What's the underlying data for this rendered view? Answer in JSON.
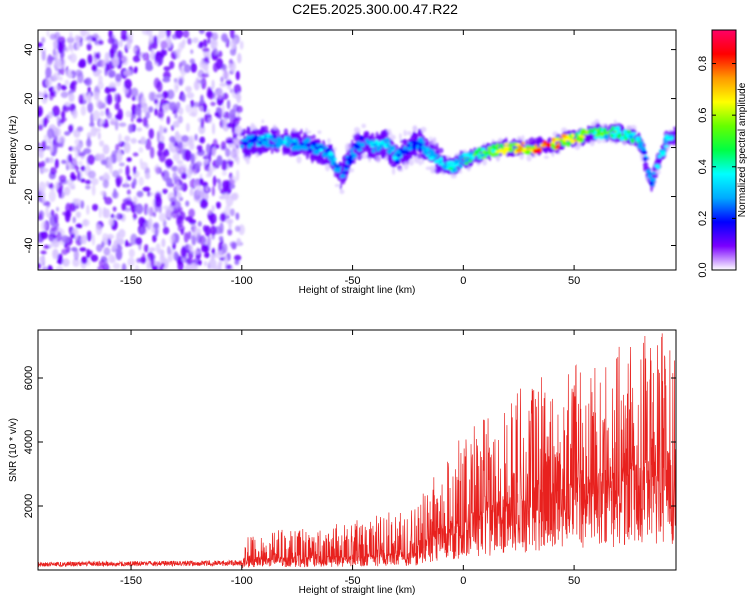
{
  "title": "C2E5.2025.300.00.47.R22",
  "colors": {
    "snr_line": "#e8211e",
    "spectro_core": "#6a00ff",
    "spectro_faint": "#d9c6ff",
    "background": "#ffffff",
    "colormap": [
      "#ffffff",
      "#7a00ff",
      "#0000ff",
      "#00aaff",
      "#00ffff",
      "#00ff44",
      "#66ff00",
      "#ffff00",
      "#ff9900",
      "#ff0000",
      "#ff0066"
    ]
  },
  "chart_data": [
    {
      "type": "heatmap",
      "name": "spectrogram",
      "xlabel": "Height of straight line (km)",
      "ylabel": "Frequency (Hz)",
      "xlim": [
        -192,
        96
      ],
      "ylim": [
        -50,
        48
      ],
      "xticks": [
        -150,
        -100,
        -50,
        0,
        50
      ],
      "yticks": [
        -40,
        -20,
        0,
        20,
        40
      ],
      "noise_region_x": [
        -192,
        -100
      ],
      "ridge": {
        "x": [
          -100,
          -90,
          -80,
          -70,
          -60,
          -55,
          -50,
          -45,
          -40,
          -35,
          -30,
          -25,
          -20,
          -15,
          -10,
          -5,
          0,
          10,
          20,
          30,
          40,
          50,
          60,
          70,
          75,
          80,
          82,
          85,
          88,
          90,
          92,
          96
        ],
        "freq": [
          2,
          3,
          2,
          1,
          -3,
          -12,
          -2,
          3,
          0,
          2,
          -4,
          0,
          2,
          -2,
          -6,
          -8,
          -5,
          -2,
          0,
          0,
          1,
          4,
          6,
          6,
          5,
          2,
          -5,
          -14,
          -6,
          -2,
          3,
          5
        ],
        "amplitude": [
          0.3,
          0.32,
          0.34,
          0.3,
          0.34,
          0.3,
          0.32,
          0.36,
          0.4,
          0.38,
          0.34,
          0.32,
          0.3,
          0.34,
          0.38,
          0.42,
          0.45,
          0.55,
          0.7,
          0.85,
          0.8,
          0.7,
          0.55,
          0.5,
          0.45,
          0.4,
          0.35,
          0.3,
          0.4,
          0.42,
          0.4,
          0.35
        ]
      },
      "colorbar": {
        "label": "Normalized spectral amplitude",
        "range": [
          0,
          0.93
        ],
        "ticks": [
          "0.0",
          "0.2",
          "0.4",
          "0.6",
          "0.8"
        ]
      }
    },
    {
      "type": "line",
      "name": "snr",
      "xlabel": "Height of straight line (km)",
      "ylabel": "SNR (10 * v/v)",
      "xlim": [
        -192,
        96
      ],
      "ylim": [
        0,
        7500
      ],
      "xticks": [
        -150,
        -100,
        -50,
        0,
        50
      ],
      "yticks": [
        2000,
        4000,
        6000
      ],
      "envelope": {
        "x": [
          -192,
          -100,
          -97,
          -80,
          -60,
          -40,
          -20,
          -16,
          -10,
          0,
          10,
          20,
          30,
          40,
          50,
          60,
          70,
          80,
          90,
          96
        ],
        "base": [
          180,
          220,
          300,
          350,
          380,
          420,
          520,
          900,
          1200,
          1400,
          1700,
          2000,
          2200,
          2400,
          2600,
          2700,
          2900,
          3000,
          3200,
          3300
        ],
        "peak": [
          350,
          350,
          1100,
          1300,
          1400,
          1700,
          2000,
          3000,
          3600,
          4200,
          4800,
          5400,
          6000,
          6400,
          6600,
          6800,
          7000,
          7300,
          7400,
          6500
        ]
      }
    }
  ]
}
